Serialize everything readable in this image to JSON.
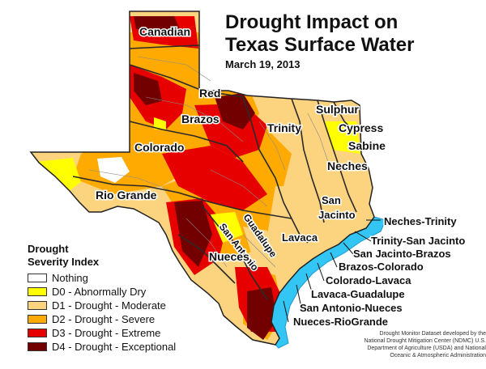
{
  "title": {
    "line1": "Drought Impact on",
    "line2": "Texas Surface Water",
    "date": "March 19, 2013"
  },
  "legend": {
    "title_line1": "Drought",
    "title_line2": "Severity Index",
    "items": [
      {
        "label": "Nothing",
        "color": "#ffffff"
      },
      {
        "label": "D0 - Abnormally Dry",
        "color": "#ffff00"
      },
      {
        "label": "D1 - Drought - Moderate",
        "color": "#fcd37f"
      },
      {
        "label": "D2 - Drought - Severe",
        "color": "#ffaa00"
      },
      {
        "label": "D3 - Drought - Extreme",
        "color": "#e60000"
      },
      {
        "label": "D4 - Drought - Exceptional",
        "color": "#730000"
      }
    ]
  },
  "basin_labels": {
    "canadian": "Canadian",
    "red": "Red",
    "brazos": "Brazos",
    "sulphur": "Sulphur",
    "trinity": "Trinity",
    "cypress": "Cypress",
    "colorado": "Colorado",
    "sabine": "Sabine",
    "neches": "Neches",
    "rio_grande": "Rio Grande",
    "san_jacinto_1": "San",
    "san_jacinto_2": "Jacinto",
    "lavaca": "Lavaca",
    "san_antonio": "San Antonio",
    "guadalupe": "Guadalupe",
    "nueces": "Nueces",
    "neches_trinity": "Neches-Trinity",
    "trinity_san_jacinto": "Trinity-San Jacinto",
    "san_jacinto_brazos": "San Jacinto-Brazos",
    "brazos_colorado": "Brazos-Colorado",
    "colorado_lavaca": "Colorado-Lavaca",
    "lavaca_guadalupe": "Lavaca-Guadalupe",
    "san_antonio_nueces": "San Antonio-Nueces",
    "nueces_riogrande": "Nueces-RioGrande"
  },
  "credit": {
    "line1": "Drought Monitor Dataset developed by the",
    "line2": "National Drought Mitigation Center (NDMC) U.S.",
    "line3": "Department of Agriculture (USDA) and National",
    "line4": "Oceanic & Atmospheric Administration"
  },
  "colors": {
    "gulf_water": "#33c6f4",
    "river_lines": "#8a8a8a"
  }
}
